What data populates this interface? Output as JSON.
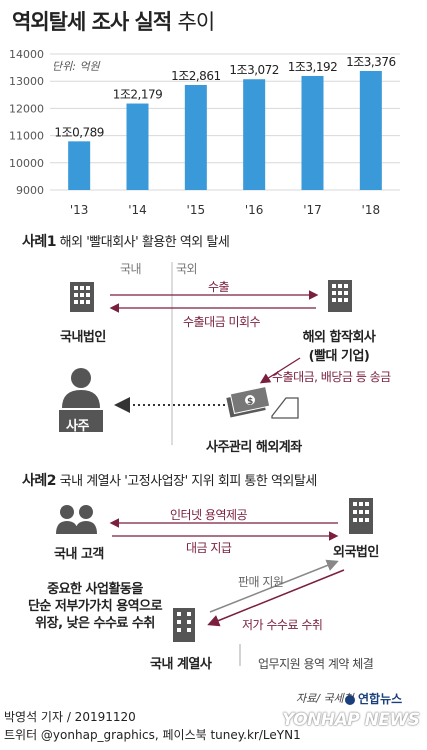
{
  "header": {
    "title_bold": "역외탈세 조사 실적",
    "title_light": "추이"
  },
  "chart_data": {
    "type": "bar",
    "unit_label": "단위: 억원",
    "categories": [
      "'13",
      "'14",
      "'15",
      "'16",
      "'17",
      "'18"
    ],
    "values": [
      10789,
      12179,
      12861,
      13072,
      13192,
      13376
    ],
    "data_labels": [
      "1조0,789",
      "1조2,179",
      "1조2,861",
      "1조3,072",
      "1조3,192",
      "1조3,376"
    ],
    "yticks": [
      "14000",
      "13000",
      "12000",
      "11000",
      "10000",
      "9000"
    ],
    "ylim": [
      9000,
      14000
    ],
    "bar_color": "#3a9ad9",
    "grid": true
  },
  "case1": {
    "title_bold": "사례1",
    "title": "해외 '빨대회사' 활용한 역외 탈세",
    "domestic": "국내",
    "foreign": "국외",
    "export_label": "수출",
    "unpaid_label": "수출대금 미회수",
    "left_entity": "국내법인",
    "right_entity_line1": "해외 합작회사",
    "right_entity_line2": "(빨대 기업)",
    "remit_label": "수출대금, 배당금 등 송금",
    "owner": "사주",
    "account": "사주관리 해외계좌"
  },
  "case2": {
    "title_bold": "사례2",
    "title": "국내 계열사 '고정사업장' 지위 회피 통한 역외탈세",
    "internet_label": "인터넷 용역제공",
    "payment_label": "대금 지급",
    "customers": "국내 고객",
    "foreign_corp": "외국법인",
    "sales_support": "판매 지원",
    "low_fee": "저가 수수료 수취",
    "disguise_line1": "중요한 사업활동을",
    "disguise_line2": "단순 저부가가치 용역으로",
    "disguise_line3": "위장, 낮은 수수료 수취",
    "affiliate": "국내 계열사",
    "contract": "업무지원 용역 계약 체결"
  },
  "footer": {
    "source": "자료/ 국세청",
    "reporter": "박영석 기자 / 20191120",
    "social": "트위터 @yonhap_graphics, 페이스북 tuney.kr/LeYN1",
    "brand_ko": "연합뉴스",
    "brand_en": "YONHAP NEWS"
  },
  "colors": {
    "accent": "#3a9ad9",
    "maroon": "#7a1f3d",
    "icon": "#555555"
  }
}
